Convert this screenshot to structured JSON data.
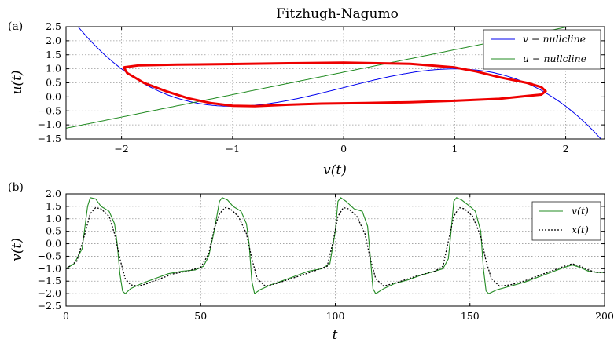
{
  "chart_data": [
    {
      "type": "line",
      "panel_label": "(a)",
      "title": "Fitzhugh-Nagumo",
      "xlabel": "v(t)",
      "ylabel": "u(t)",
      "xlim": [
        -2.5,
        2.35
      ],
      "ylim": [
        -1.5,
        2.5
      ],
      "xticks": [
        -2,
        -1,
        0,
        1,
        2
      ],
      "xtick_labels": [
        "−2",
        "−1",
        "0",
        "1",
        "2"
      ],
      "yticks": [
        -1.5,
        -1.0,
        -0.5,
        0.0,
        0.5,
        1.0,
        1.5,
        2.0,
        2.5
      ],
      "ytick_labels": [
        "−1.5",
        "−1.0",
        "−0.5",
        "0.0",
        "0.5",
        "1.0",
        "1.5",
        "2.0",
        "2.5"
      ],
      "grid": true,
      "legend_position": "top-right",
      "colors": {
        "v_nullcline": "#0000ee",
        "u_nullcline": "#228b22",
        "trajectory": "#ee0000"
      },
      "series": [
        {
          "name": "v − nullcline",
          "formula": "u = v - v^3/3 + 0.33"
        },
        {
          "name": "u − nullcline",
          "formula": "u = 0.8*v + 0.88"
        },
        {
          "role": "trajectory",
          "points": [
            [
              -1.98,
              1.05
            ],
            [
              -1.95,
              0.85
            ],
            [
              -1.8,
              0.5
            ],
            [
              -1.6,
              0.2
            ],
            [
              -1.4,
              -0.05
            ],
            [
              -1.2,
              -0.22
            ],
            [
              -1.0,
              -0.32
            ],
            [
              -0.8,
              -0.33
            ],
            [
              -0.5,
              -0.28
            ],
            [
              -0.2,
              -0.24
            ],
            [
              0.2,
              -0.22
            ],
            [
              0.6,
              -0.19
            ],
            [
              1.0,
              -0.14
            ],
            [
              1.4,
              -0.07
            ],
            [
              1.65,
              0.03
            ],
            [
              1.78,
              0.08
            ],
            [
              1.82,
              0.2
            ],
            [
              1.78,
              0.35
            ],
            [
              1.65,
              0.5
            ],
            [
              1.4,
              0.7
            ],
            [
              1.2,
              0.9
            ],
            [
              1.0,
              1.05
            ],
            [
              0.6,
              1.18
            ],
            [
              0.0,
              1.22
            ],
            [
              -0.5,
              1.2
            ],
            [
              -1.0,
              1.17
            ],
            [
              -1.5,
              1.15
            ],
            [
              -1.85,
              1.12
            ],
            [
              -1.97,
              1.06
            ]
          ]
        }
      ]
    },
    {
      "type": "line",
      "panel_label": "(b)",
      "xlabel": "t",
      "ylabel": "v(t)",
      "xlim": [
        0,
        200
      ],
      "ylim": [
        -2.5,
        2.0
      ],
      "xticks": [
        0,
        50,
        100,
        150,
        200
      ],
      "xtick_labels": [
        "0",
        "50",
        "100",
        "150",
        "200"
      ],
      "yticks": [
        -2.5,
        -2.0,
        -1.5,
        -1.0,
        -0.5,
        0.0,
        0.5,
        1.0,
        1.5,
        2.0
      ],
      "ytick_labels": [
        "−2.5",
        "−2.0",
        "−1.5",
        "−1.0",
        "−0.5",
        "0.0",
        "0.5",
        "1.0",
        "1.5",
        "2.0"
      ],
      "grid": true,
      "legend_position": "top-right",
      "colors": {
        "v": "#228b22",
        "x": "#000000"
      },
      "series": [
        {
          "name": "v(t)",
          "points": [
            [
              0,
              -1.0
            ],
            [
              3,
              -0.8
            ],
            [
              6,
              -0.2
            ],
            [
              8,
              1.5
            ],
            [
              9,
              1.85
            ],
            [
              11,
              1.8
            ],
            [
              13,
              1.5
            ],
            [
              16,
              1.3
            ],
            [
              18,
              0.8
            ],
            [
              19,
              0.0
            ],
            [
              20,
              -1.2
            ],
            [
              21,
              -1.9
            ],
            [
              22,
              -2.0
            ],
            [
              24,
              -1.8
            ],
            [
              28,
              -1.6
            ],
            [
              33,
              -1.4
            ],
            [
              38,
              -1.2
            ],
            [
              43,
              -1.1
            ],
            [
              48,
              -1.05
            ],
            [
              51,
              -0.9
            ],
            [
              53,
              -0.5
            ],
            [
              55,
              0.5
            ],
            [
              57,
              1.7
            ],
            [
              58,
              1.85
            ],
            [
              60,
              1.75
            ],
            [
              62,
              1.5
            ],
            [
              65,
              1.3
            ],
            [
              67,
              0.8
            ],
            [
              68,
              0.0
            ],
            [
              69,
              -1.5
            ],
            [
              70,
              -2.0
            ],
            [
              72,
              -1.85
            ],
            [
              76,
              -1.65
            ],
            [
              80,
              -1.5
            ],
            [
              85,
              -1.3
            ],
            [
              90,
              -1.1
            ],
            [
              95,
              -1.0
            ],
            [
              98,
              -0.8
            ],
            [
              100,
              0.5
            ],
            [
              101,
              1.7
            ],
            [
              102,
              1.85
            ],
            [
              104,
              1.7
            ],
            [
              107,
              1.4
            ],
            [
              110,
              1.3
            ],
            [
              112,
              0.7
            ],
            [
              113,
              -0.5
            ],
            [
              114,
              -1.8
            ],
            [
              115,
              -2.0
            ],
            [
              118,
              -1.8
            ],
            [
              122,
              -1.6
            ],
            [
              127,
              -1.45
            ],
            [
              132,
              -1.25
            ],
            [
              137,
              -1.1
            ],
            [
              140,
              -1.0
            ],
            [
              142,
              -0.6
            ],
            [
              143,
              0.5
            ],
            [
              144,
              1.7
            ],
            [
              145,
              1.85
            ],
            [
              147,
              1.75
            ],
            [
              150,
              1.5
            ],
            [
              152,
              1.3
            ],
            [
              154,
              0.5
            ],
            [
              155,
              -1.0
            ],
            [
              156,
              -1.9
            ],
            [
              157,
              -2.0
            ],
            [
              160,
              -1.85
            ],
            [
              165,
              -1.7
            ],
            [
              170,
              -1.55
            ],
            [
              175,
              -1.35
            ],
            [
              180,
              -1.15
            ],
            [
              185,
              -0.95
            ],
            [
              188,
              -0.85
            ],
            [
              191,
              -0.95
            ],
            [
              194,
              -1.1
            ],
            [
              197,
              -1.15
            ],
            [
              200,
              -1.15
            ]
          ]
        },
        {
          "name": "x(t)",
          "points": [
            [
              0,
              -1.0
            ],
            [
              4,
              -0.7
            ],
            [
              7,
              0.4
            ],
            [
              9,
              1.2
            ],
            [
              11,
              1.45
            ],
            [
              13,
              1.4
            ],
            [
              16,
              1.1
            ],
            [
              18,
              0.4
            ],
            [
              20,
              -0.6
            ],
            [
              22,
              -1.4
            ],
            [
              24,
              -1.65
            ],
            [
              27,
              -1.7
            ],
            [
              30,
              -1.6
            ],
            [
              35,
              -1.4
            ],
            [
              40,
              -1.2
            ],
            [
              45,
              -1.1
            ],
            [
              50,
              -0.95
            ],
            [
              53,
              -0.4
            ],
            [
              55,
              0.6
            ],
            [
              57,
              1.2
            ],
            [
              59,
              1.45
            ],
            [
              61,
              1.4
            ],
            [
              64,
              1.1
            ],
            [
              67,
              0.4
            ],
            [
              69,
              -0.6
            ],
            [
              71,
              -1.4
            ],
            [
              74,
              -1.7
            ],
            [
              78,
              -1.6
            ],
            [
              85,
              -1.35
            ],
            [
              92,
              -1.1
            ],
            [
              97,
              -0.9
            ],
            [
              99,
              0.0
            ],
            [
              101,
              1.1
            ],
            [
              103,
              1.45
            ],
            [
              105,
              1.4
            ],
            [
              108,
              1.1
            ],
            [
              111,
              0.4
            ],
            [
              113,
              -0.6
            ],
            [
              115,
              -1.4
            ],
            [
              118,
              -1.7
            ],
            [
              123,
              -1.55
            ],
            [
              130,
              -1.3
            ],
            [
              137,
              -1.1
            ],
            [
              140,
              -0.9
            ],
            [
              142,
              0.1
            ],
            [
              144,
              1.1
            ],
            [
              146,
              1.45
            ],
            [
              148,
              1.4
            ],
            [
              151,
              1.1
            ],
            [
              154,
              0.3
            ],
            [
              156,
              -0.7
            ],
            [
              158,
              -1.4
            ],
            [
              161,
              -1.7
            ],
            [
              165,
              -1.65
            ],
            [
              170,
              -1.5
            ],
            [
              175,
              -1.3
            ],
            [
              180,
              -1.1
            ],
            [
              185,
              -0.9
            ],
            [
              188,
              -0.8
            ],
            [
              191,
              -0.9
            ],
            [
              194,
              -1.05
            ],
            [
              197,
              -1.15
            ],
            [
              200,
              -1.15
            ]
          ]
        }
      ]
    }
  ]
}
